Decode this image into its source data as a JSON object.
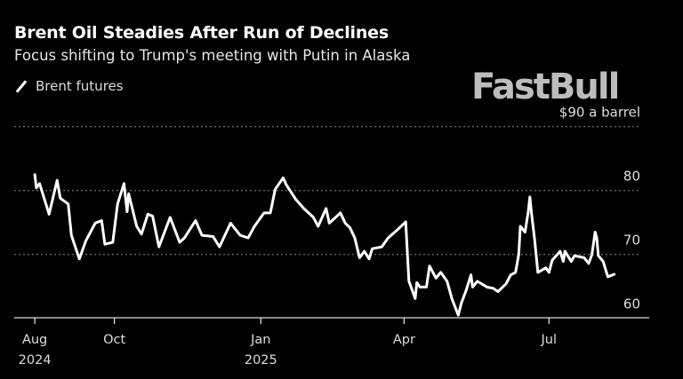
{
  "chart_data": {
    "type": "line",
    "title": "Brent Oil Steadies After Run of Declines",
    "subtitle": "Focus shifting to Trump's meeting with Putin in Alaska",
    "ylabel": "",
    "y_unit_label": "$90 a barrel",
    "ylim": [
      60,
      90
    ],
    "yticks": [
      {
        "value": 90,
        "label": "$90 a barrel"
      },
      {
        "value": 80,
        "label": "80"
      },
      {
        "value": 70,
        "label": "70"
      },
      {
        "value": 60,
        "label": "60"
      }
    ],
    "xticks": [
      {
        "date": "2024-08-12",
        "label": "Aug",
        "sub": "2024"
      },
      {
        "date": "2024-10-01",
        "label": "Oct",
        "sub": ""
      },
      {
        "date": "2025-01-01",
        "label": "Jan",
        "sub": "2025"
      },
      {
        "date": "2025-04-01",
        "label": "Apr",
        "sub": ""
      },
      {
        "date": "2025-07-01",
        "label": "Jul",
        "sub": ""
      }
    ],
    "grid": true,
    "legend_position": "top-left",
    "series": [
      {
        "name": "Brent futures",
        "color": "#ffffff",
        "points": [
          [
            "2024-08-12",
            82.5
          ],
          [
            "2024-08-13",
            80.4
          ],
          [
            "2024-08-15",
            81.1
          ],
          [
            "2024-08-21",
            76.3
          ],
          [
            "2024-08-26",
            81.6
          ],
          [
            "2024-08-28",
            78.8
          ],
          [
            "2024-09-02",
            77.9
          ],
          [
            "2024-09-04",
            73.0
          ],
          [
            "2024-09-09",
            69.3
          ],
          [
            "2024-09-13",
            72.1
          ],
          [
            "2024-09-19",
            74.9
          ],
          [
            "2024-09-23",
            75.3
          ],
          [
            "2024-09-25",
            71.6
          ],
          [
            "2024-09-30",
            71.9
          ],
          [
            "2024-10-03",
            77.9
          ],
          [
            "2024-10-07",
            81.1
          ],
          [
            "2024-10-09",
            76.7
          ],
          [
            "2024-10-10",
            79.5
          ],
          [
            "2024-10-15",
            74.4
          ],
          [
            "2024-10-18",
            73.2
          ],
          [
            "2024-10-22",
            76.3
          ],
          [
            "2024-10-25",
            76.0
          ],
          [
            "2024-10-29",
            71.2
          ],
          [
            "2024-11-05",
            75.8
          ],
          [
            "2024-11-11",
            71.9
          ],
          [
            "2024-11-14",
            72.6
          ],
          [
            "2024-11-21",
            75.3
          ],
          [
            "2024-11-25",
            73.0
          ],
          [
            "2024-12-02",
            72.8
          ],
          [
            "2024-12-06",
            71.2
          ],
          [
            "2024-12-13",
            74.9
          ],
          [
            "2024-12-19",
            73.0
          ],
          [
            "2024-12-24",
            72.6
          ],
          [
            "2024-12-28",
            74.4
          ],
          [
            "2025-01-03",
            76.5
          ],
          [
            "2025-01-07",
            76.5
          ],
          [
            "2025-01-10",
            80.2
          ],
          [
            "2025-01-15",
            82.0
          ],
          [
            "2025-01-17",
            80.9
          ],
          [
            "2025-01-23",
            78.6
          ],
          [
            "2025-01-28",
            77.2
          ],
          [
            "2025-02-03",
            75.8
          ],
          [
            "2025-02-06",
            74.4
          ],
          [
            "2025-02-11",
            77.2
          ],
          [
            "2025-02-13",
            74.9
          ],
          [
            "2025-02-20",
            76.5
          ],
          [
            "2025-02-23",
            74.9
          ],
          [
            "2025-02-26",
            74.2
          ],
          [
            "2025-03-01",
            72.6
          ],
          [
            "2025-03-04",
            69.5
          ],
          [
            "2025-03-07",
            70.5
          ],
          [
            "2025-03-10",
            69.3
          ],
          [
            "2025-03-12",
            70.9
          ],
          [
            "2025-03-18",
            71.2
          ],
          [
            "2025-03-22",
            72.6
          ],
          [
            "2025-03-28",
            73.9
          ],
          [
            "2025-04-02",
            75.1
          ],
          [
            "2025-04-04",
            65.8
          ],
          [
            "2025-04-08",
            63.1
          ],
          [
            "2025-04-09",
            65.6
          ],
          [
            "2025-04-11",
            64.9
          ],
          [
            "2025-04-15",
            64.9
          ],
          [
            "2025-04-17",
            68.2
          ],
          [
            "2025-04-21",
            66.3
          ],
          [
            "2025-04-24",
            67.2
          ],
          [
            "2025-04-28",
            65.8
          ],
          [
            "2025-05-01",
            63.1
          ],
          [
            "2025-05-05",
            60.5
          ],
          [
            "2025-05-07",
            62.4
          ],
          [
            "2025-05-10",
            64.4
          ],
          [
            "2025-05-13",
            66.8
          ],
          [
            "2025-05-14",
            64.9
          ],
          [
            "2025-05-17",
            65.8
          ],
          [
            "2025-05-23",
            64.9
          ],
          [
            "2025-05-27",
            64.7
          ],
          [
            "2025-05-30",
            64.2
          ],
          [
            "2025-06-04",
            65.4
          ],
          [
            "2025-06-07",
            66.8
          ],
          [
            "2025-06-10",
            67.2
          ],
          [
            "2025-06-12",
            70.0
          ],
          [
            "2025-06-13",
            74.4
          ],
          [
            "2025-06-16",
            73.5
          ],
          [
            "2025-06-18",
            76.7
          ],
          [
            "2025-06-19",
            79.0
          ],
          [
            "2025-06-20",
            76.5
          ],
          [
            "2025-06-22",
            72.3
          ],
          [
            "2025-06-24",
            67.2
          ],
          [
            "2025-06-29",
            67.9
          ],
          [
            "2025-07-01",
            67.2
          ],
          [
            "2025-07-03",
            69.1
          ],
          [
            "2025-07-08",
            70.5
          ],
          [
            "2025-07-10",
            68.9
          ],
          [
            "2025-07-11",
            70.5
          ],
          [
            "2025-07-15",
            68.9
          ],
          [
            "2025-07-17",
            69.8
          ],
          [
            "2025-07-23",
            69.5
          ],
          [
            "2025-07-26",
            68.6
          ],
          [
            "2025-07-28",
            70.0
          ],
          [
            "2025-07-30",
            73.5
          ],
          [
            "2025-07-31",
            72.6
          ],
          [
            "2025-08-01",
            69.8
          ],
          [
            "2025-08-04",
            68.9
          ],
          [
            "2025-08-07",
            66.5
          ],
          [
            "2025-08-11",
            66.9
          ]
        ]
      }
    ]
  },
  "watermark": "FastBull"
}
